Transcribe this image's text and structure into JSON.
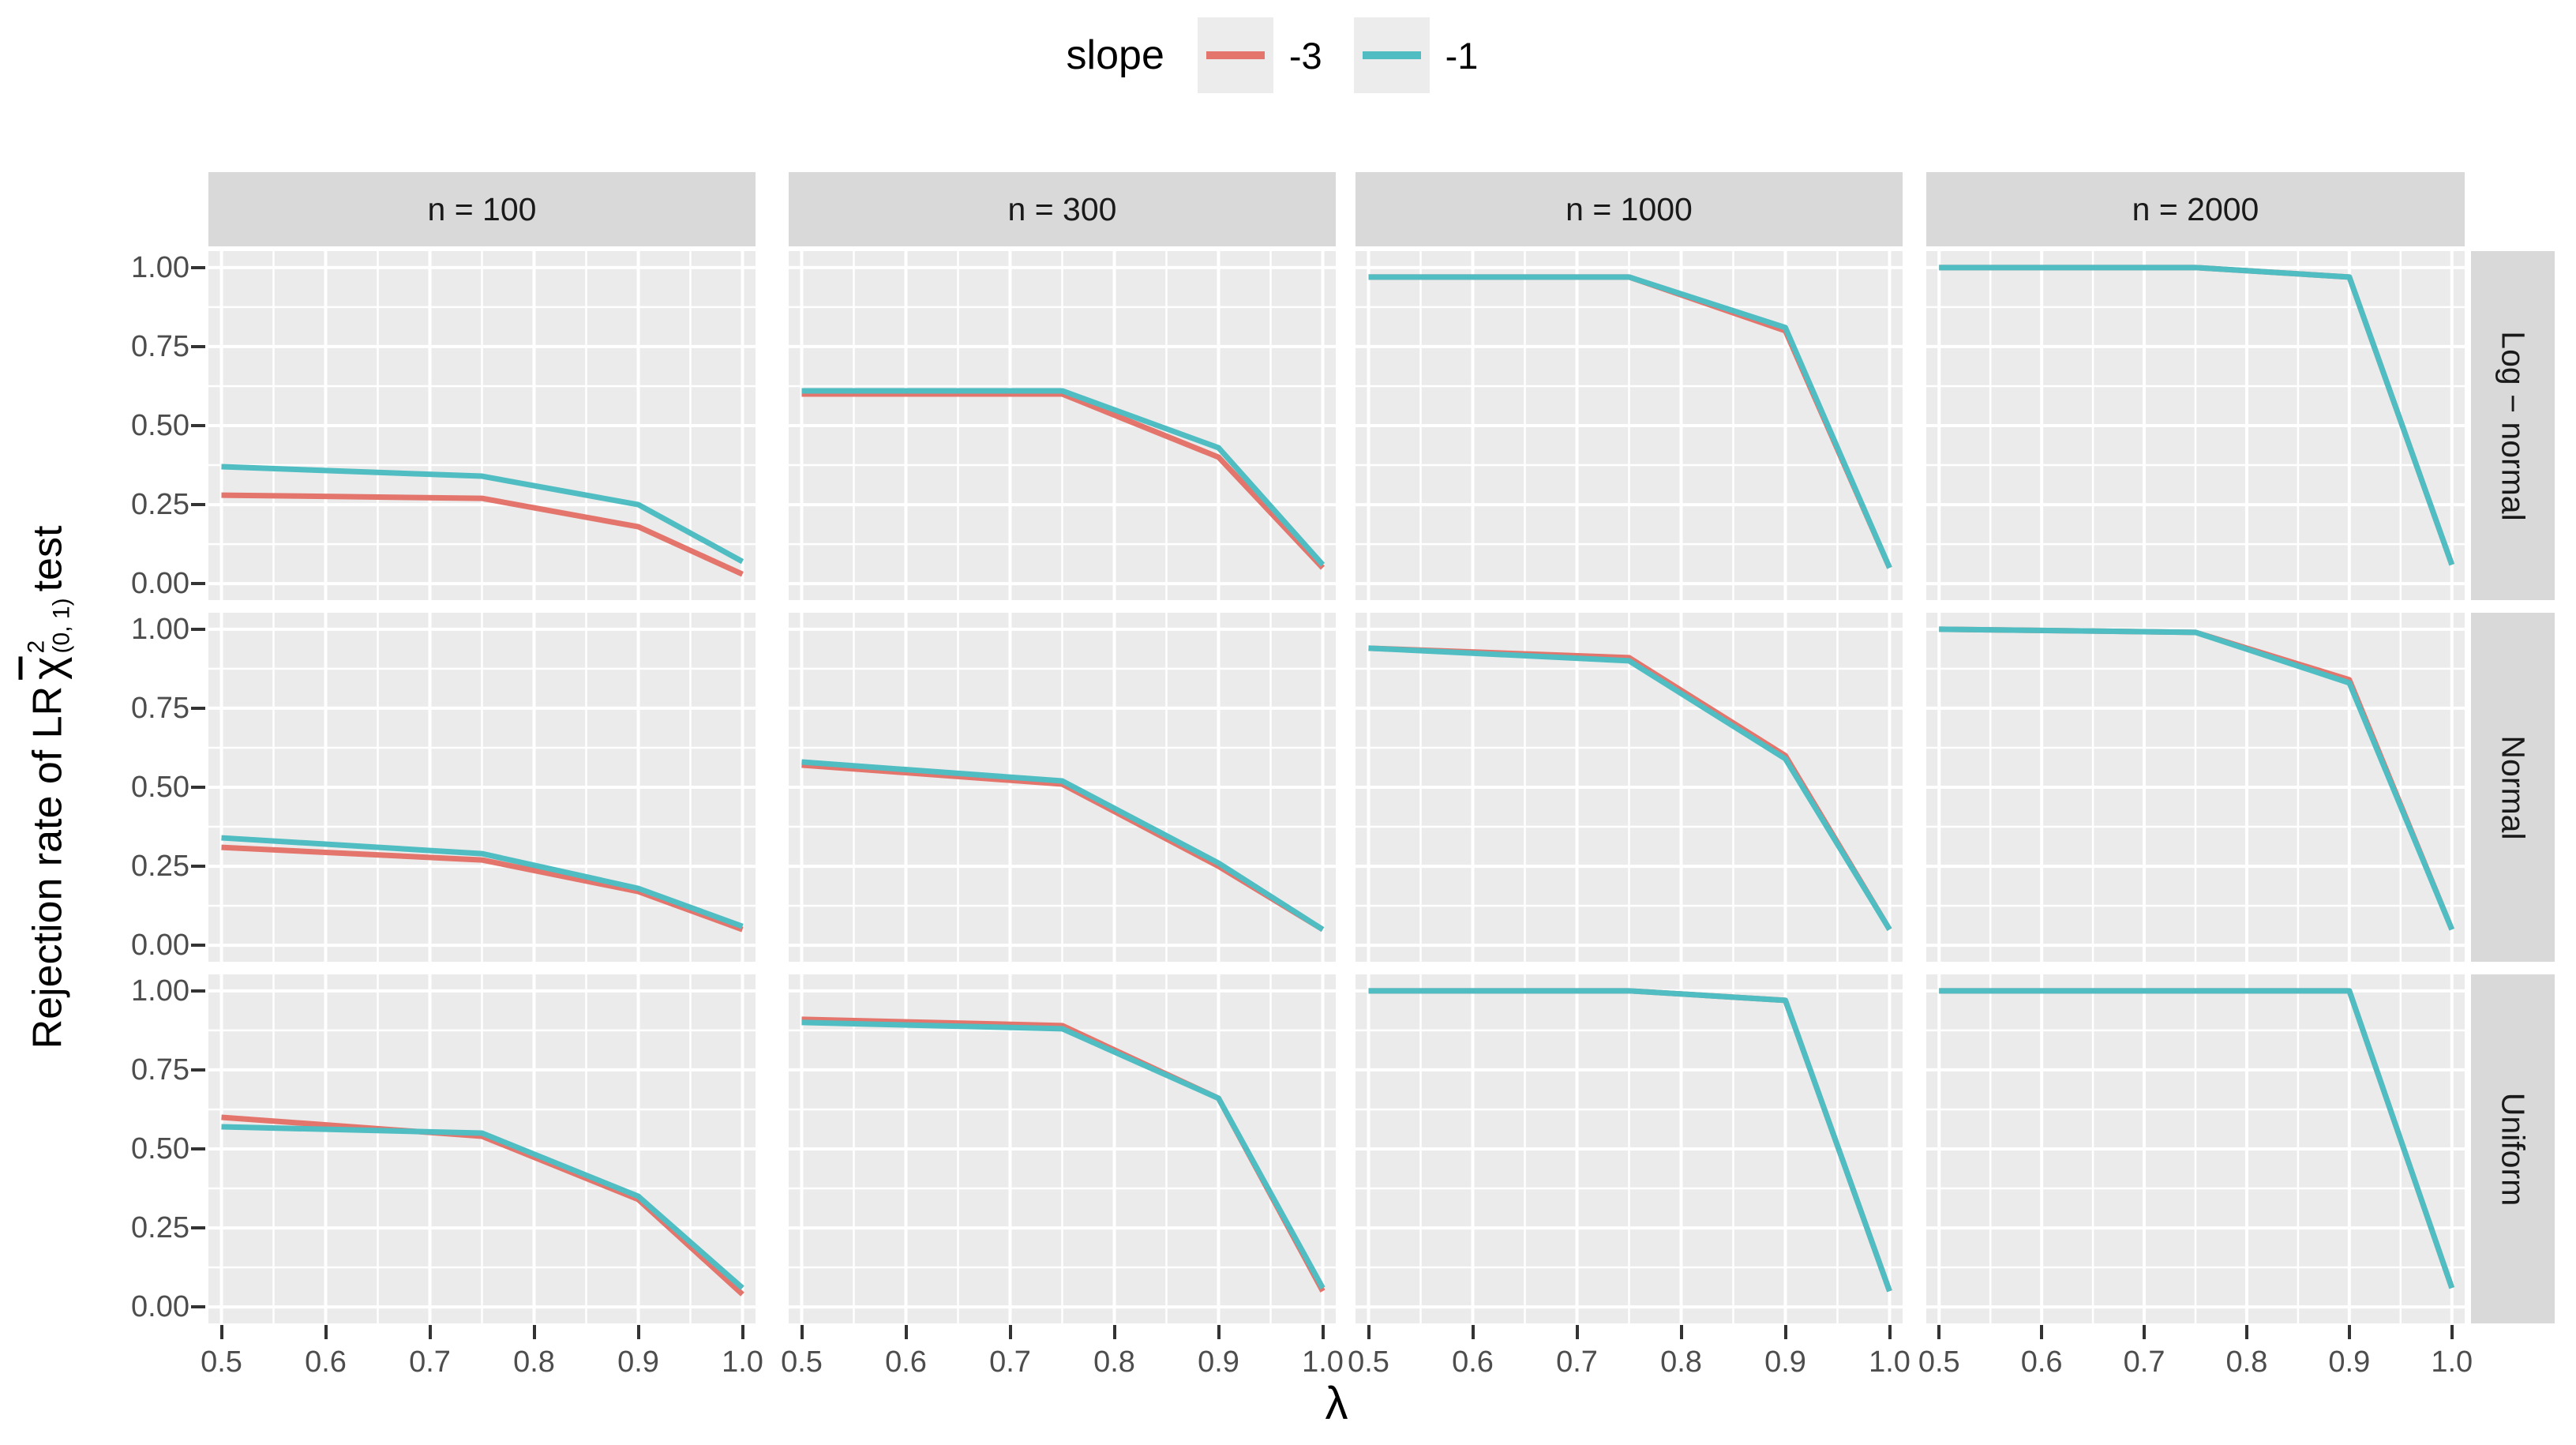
{
  "legend": {
    "title": "slope",
    "items": [
      {
        "label": "-3",
        "color": "#E4756C"
      },
      {
        "label": "-1",
        "color": "#4FBDC2"
      }
    ]
  },
  "axes": {
    "x_title": "λ",
    "x_ticks": [
      "0.5",
      "0.6",
      "0.7",
      "0.8",
      "0.9",
      "1.0"
    ],
    "x_tick_values": [
      0.5,
      0.6,
      0.7,
      0.8,
      0.9,
      1.0
    ],
    "y_ticks": [
      "1.00",
      "0.75",
      "0.50",
      "0.25",
      "0.00"
    ],
    "y_tick_values": [
      1.0,
      0.75,
      0.5,
      0.25,
      0.0
    ],
    "y_title_parts": {
      "prefix": "Rejection rate of LR",
      "chi": "χ",
      "sup": "2",
      "sub": "(0, 1)",
      "suffix": "test"
    }
  },
  "facets": {
    "columns": [
      "n = 100",
      "n = 300",
      "n = 1000",
      "n = 2000"
    ],
    "rows": [
      "Log − normal",
      "Normal",
      "Uniform"
    ]
  },
  "colors": {
    "panel_bg": "#EBEBEB",
    "strip_bg": "#D9D9D9",
    "grid": "#FFFFFF",
    "tick_text": "#4D4D4D",
    "tick_mark": "#333333",
    "red": "#E4756C",
    "teal": "#4FBDC2",
    "key_bg": "#ECECEC"
  },
  "chart_data": {
    "type": "line",
    "x": [
      0.5,
      0.75,
      0.9,
      1.0
    ],
    "xlabel": "λ",
    "ylabel": "Rejection rate of LR chi-bar-squared (0,1) test",
    "xlim": [
      0.5,
      1.0
    ],
    "ylim": [
      0.0,
      1.0
    ],
    "grid": "white major+minor on gray panels",
    "legend_position": "top",
    "facet_columns": [
      "n = 100",
      "n = 300",
      "n = 1000",
      "n = 2000"
    ],
    "facet_rows": [
      "Log − normal",
      "Normal",
      "Uniform"
    ],
    "series_colors": {
      "-3": "#E4756C",
      "-1": "#4FBDC2"
    },
    "panels": [
      {
        "row": "Log − normal",
        "col": "n = 100",
        "series": [
          {
            "name": "-3",
            "values": [
              0.28,
              0.27,
              0.18,
              0.03
            ]
          },
          {
            "name": "-1",
            "values": [
              0.37,
              0.34,
              0.25,
              0.07
            ]
          }
        ]
      },
      {
        "row": "Log − normal",
        "col": "n = 300",
        "series": [
          {
            "name": "-3",
            "values": [
              0.6,
              0.6,
              0.4,
              0.05
            ]
          },
          {
            "name": "-1",
            "values": [
              0.61,
              0.61,
              0.43,
              0.06
            ]
          }
        ]
      },
      {
        "row": "Log − normal",
        "col": "n = 1000",
        "series": [
          {
            "name": "-3",
            "values": [
              0.97,
              0.97,
              0.8,
              0.05
            ]
          },
          {
            "name": "-1",
            "values": [
              0.97,
              0.97,
              0.81,
              0.05
            ]
          }
        ]
      },
      {
        "row": "Log − normal",
        "col": "n = 2000",
        "series": [
          {
            "name": "-3",
            "values": [
              1.0,
              1.0,
              0.97,
              0.06
            ]
          },
          {
            "name": "-1",
            "values": [
              1.0,
              1.0,
              0.97,
              0.06
            ]
          }
        ]
      },
      {
        "row": "Normal",
        "col": "n = 100",
        "series": [
          {
            "name": "-3",
            "values": [
              0.31,
              0.27,
              0.17,
              0.05
            ]
          },
          {
            "name": "-1",
            "values": [
              0.34,
              0.29,
              0.18,
              0.06
            ]
          }
        ]
      },
      {
        "row": "Normal",
        "col": "n = 300",
        "series": [
          {
            "name": "-3",
            "values": [
              0.57,
              0.51,
              0.25,
              0.05
            ]
          },
          {
            "name": "-1",
            "values": [
              0.58,
              0.52,
              0.26,
              0.05
            ]
          }
        ]
      },
      {
        "row": "Normal",
        "col": "n = 1000",
        "series": [
          {
            "name": "-3",
            "values": [
              0.94,
              0.91,
              0.6,
              0.05
            ]
          },
          {
            "name": "-1",
            "values": [
              0.94,
              0.9,
              0.59,
              0.05
            ]
          }
        ]
      },
      {
        "row": "Normal",
        "col": "n = 2000",
        "series": [
          {
            "name": "-3",
            "values": [
              1.0,
              0.99,
              0.84,
              0.05
            ]
          },
          {
            "name": "-1",
            "values": [
              1.0,
              0.99,
              0.83,
              0.05
            ]
          }
        ]
      },
      {
        "row": "Uniform",
        "col": "n = 100",
        "series": [
          {
            "name": "-3",
            "values": [
              0.6,
              0.54,
              0.34,
              0.04
            ]
          },
          {
            "name": "-1",
            "values": [
              0.57,
              0.55,
              0.35,
              0.06
            ]
          }
        ]
      },
      {
        "row": "Uniform",
        "col": "n = 300",
        "series": [
          {
            "name": "-3",
            "values": [
              0.91,
              0.89,
              0.66,
              0.05
            ]
          },
          {
            "name": "-1",
            "values": [
              0.9,
              0.88,
              0.66,
              0.06
            ]
          }
        ]
      },
      {
        "row": "Uniform",
        "col": "n = 1000",
        "series": [
          {
            "name": "-3",
            "values": [
              1.0,
              1.0,
              0.97,
              0.05
            ]
          },
          {
            "name": "-1",
            "values": [
              1.0,
              1.0,
              0.97,
              0.05
            ]
          }
        ]
      },
      {
        "row": "Uniform",
        "col": "n = 2000",
        "series": [
          {
            "name": "-3",
            "values": [
              1.0,
              1.0,
              1.0,
              0.06
            ]
          },
          {
            "name": "-1",
            "values": [
              1.0,
              1.0,
              1.0,
              0.06
            ]
          }
        ]
      }
    ]
  }
}
